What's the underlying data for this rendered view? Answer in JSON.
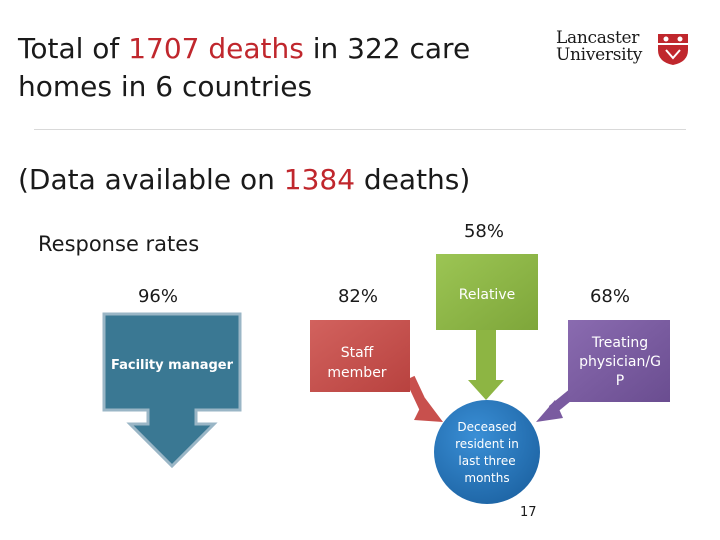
{
  "title": {
    "part1": "Total of ",
    "deaths_count": "1707 deaths",
    "part2": " in 322 care homes in 6 countries"
  },
  "logo": {
    "line1": "Lancaster",
    "line2": "University"
  },
  "subtitle": {
    "part1": "(Data available on ",
    "count": "1384",
    "part2": " deaths)"
  },
  "response_rates_label": "Response rates",
  "nodes": {
    "facility_manager": {
      "label": "Facility manager",
      "rate": "96%",
      "color": "#3a7893"
    },
    "staff_member": {
      "label_line1": "Staff",
      "label_line2": "member",
      "rate": "82%",
      "color": "#c8504d"
    },
    "relative": {
      "label": "Relative",
      "rate": "58%",
      "color": "#8db543"
    },
    "treating_physician": {
      "label_line1": "Treating",
      "label_line2": "physician/G",
      "label_line3": "P",
      "rate": "68%",
      "color": "#7a5ba0"
    },
    "deceased_resident": {
      "line1": "Deceased",
      "line2": "resident in",
      "line3": "last three",
      "line4": "months",
      "color": "#1f72b8"
    }
  },
  "page_number": "17"
}
